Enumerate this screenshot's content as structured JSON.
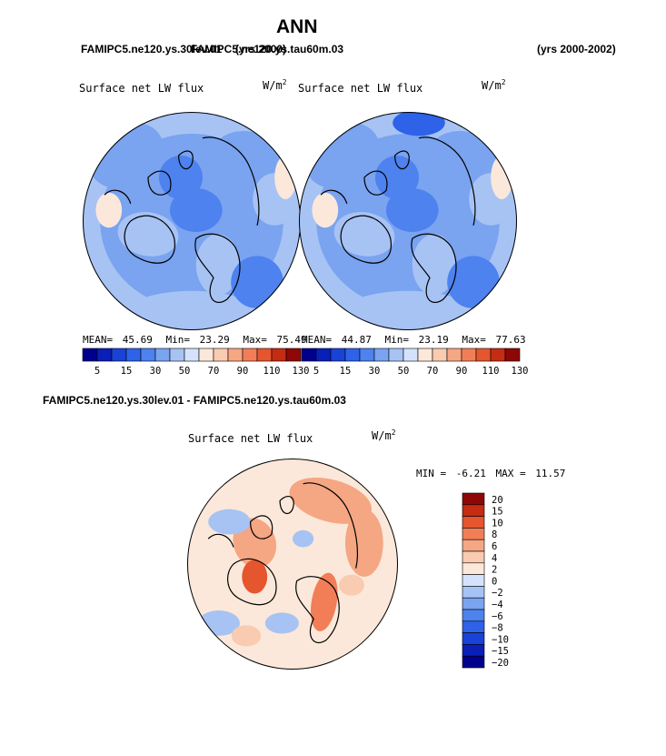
{
  "page": {
    "title": "ANN",
    "top_left_case": "FAMIPC5.ne120.ys.30lev.01",
    "top_right_case": "FAMIPC5.ne120.ys.tau60m.03",
    "overlap_years": "(yrs 2000)",
    "years": "(yrs 2000-2002)",
    "diff_title": "FAMIPC5.ne120.ys.30lev.01 - FAMIPC5.ne120.ys.tau60m.03"
  },
  "colors": {
    "abs_scale": [
      "#00008c",
      "#0a1fb8",
      "#1942d6",
      "#2e62e8",
      "#4d82ef",
      "#7aa3f0",
      "#a7c3f4",
      "#d4e3fb",
      "#fbe8da",
      "#f9cbb0",
      "#f5a683",
      "#f27e57",
      "#e5552e",
      "#c52c12",
      "#8e0707"
    ],
    "diff_scale": [
      "#00008c",
      "#0a1fb8",
      "#1942d6",
      "#2e62e8",
      "#4d82ef",
      "#7aa3f0",
      "#a7c3f4",
      "#d4e3fb",
      "#fbe8da",
      "#f9cbb0",
      "#f5a683",
      "#f27e57",
      "#e5552e",
      "#c52c12",
      "#8e0707"
    ]
  },
  "chart_data": [
    {
      "type": "heatmap",
      "subtype": "polar-stereographic map",
      "title": "Surface net LW flux",
      "units": "W/m2",
      "units_base": "W/m",
      "units_exp": "2",
      "stats": {
        "mean_label": "MEAN=",
        "mean": "45.69",
        "min_label": "Min=",
        "min": "23.29",
        "max_label": "Max=",
        "max": "75.49"
      },
      "colorbar_levels": [
        "5",
        "15",
        "30",
        "50",
        "70",
        "90",
        "110",
        "130"
      ]
    },
    {
      "type": "heatmap",
      "subtype": "polar-stereographic map",
      "title": "Surface net LW flux",
      "units": "W/m2",
      "units_base": "W/m",
      "units_exp": "2",
      "stats": {
        "mean_label": "MEAN=",
        "mean": "44.87",
        "min_label": "Min=",
        "min": "23.19",
        "max_label": "Max=",
        "max": "77.63"
      },
      "colorbar_levels": [
        "5",
        "15",
        "30",
        "50",
        "70",
        "90",
        "110",
        "130"
      ]
    },
    {
      "type": "heatmap",
      "subtype": "polar-stereographic difference map",
      "title": "Surface net LW flux",
      "units": "W/m2",
      "units_base": "W/m",
      "units_exp": "2",
      "stats": {
        "min_label": "MIN =",
        "min": "-6.21",
        "max_label": "MAX =",
        "max": "11.57"
      },
      "colorbar_levels": [
        "20",
        "15",
        "10",
        "8",
        "6",
        "4",
        "2",
        "0",
        "−2",
        "−4",
        "−6",
        "−8",
        "−10",
        "−15",
        "−20"
      ]
    }
  ]
}
